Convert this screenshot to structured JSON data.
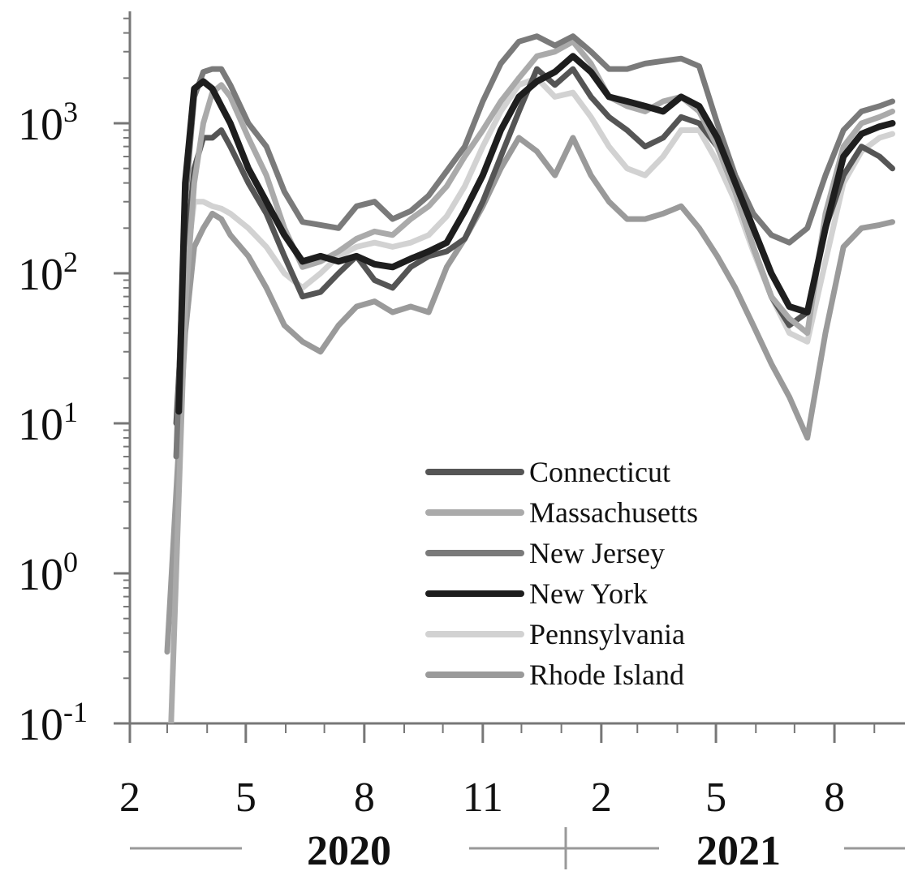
{
  "chart_data": {
    "type": "line",
    "y_scale": "log",
    "ylim": [
      0.1,
      5000
    ],
    "x_range": [
      "2020-02-01",
      "2021-09-15"
    ],
    "y_ticks": [
      {
        "value": 0.1,
        "base": "10",
        "exp": "-1"
      },
      {
        "value": 1,
        "base": "10",
        "exp": "0"
      },
      {
        "value": 10,
        "base": "10",
        "exp": "1"
      },
      {
        "value": 100,
        "base": "10",
        "exp": "2"
      },
      {
        "value": 1000,
        "base": "10",
        "exp": "3"
      }
    ],
    "x_ticks": [
      {
        "date": "2020-02-01",
        "label": "2"
      },
      {
        "date": "2020-05-01",
        "label": "5"
      },
      {
        "date": "2020-08-01",
        "label": "8"
      },
      {
        "date": "2020-11-01",
        "label": "11"
      },
      {
        "date": "2021-02-01",
        "label": "2"
      },
      {
        "date": "2021-05-01",
        "label": "5"
      },
      {
        "date": "2021-08-01",
        "label": "8"
      }
    ],
    "year_labels": [
      {
        "label": "2020"
      },
      {
        "label": "2021"
      }
    ],
    "grid": false,
    "legend_position": "center",
    "series": [
      {
        "name": "Connecticut",
        "color": "#555555",
        "points": [
          [
            "2020-03-08",
            10
          ],
          [
            "2020-03-15",
            120
          ],
          [
            "2020-03-22",
            500
          ],
          [
            "2020-03-29",
            800
          ],
          [
            "2020-04-05",
            800
          ],
          [
            "2020-04-12",
            900
          ],
          [
            "2020-04-19",
            700
          ],
          [
            "2020-05-03",
            400
          ],
          [
            "2020-05-17",
            250
          ],
          [
            "2020-05-31",
            130
          ],
          [
            "2020-06-14",
            70
          ],
          [
            "2020-06-28",
            75
          ],
          [
            "2020-07-12",
            100
          ],
          [
            "2020-07-26",
            130
          ],
          [
            "2020-08-09",
            90
          ],
          [
            "2020-08-23",
            80
          ],
          [
            "2020-09-06",
            110
          ],
          [
            "2020-09-20",
            130
          ],
          [
            "2020-10-04",
            140
          ],
          [
            "2020-10-18",
            170
          ],
          [
            "2020-11-01",
            300
          ],
          [
            "2020-11-15",
            600
          ],
          [
            "2020-11-29",
            1200
          ],
          [
            "2020-12-13",
            2300
          ],
          [
            "2020-12-27",
            1800
          ],
          [
            "2021-01-10",
            2300
          ],
          [
            "2021-01-24",
            1500
          ],
          [
            "2021-02-07",
            1100
          ],
          [
            "2021-02-21",
            900
          ],
          [
            "2021-03-07",
            700
          ],
          [
            "2021-03-21",
            800
          ],
          [
            "2021-04-04",
            1100
          ],
          [
            "2021-04-18",
            1000
          ],
          [
            "2021-05-02",
            700
          ],
          [
            "2021-05-16",
            350
          ],
          [
            "2021-05-30",
            150
          ],
          [
            "2021-06-13",
            70
          ],
          [
            "2021-06-27",
            45
          ],
          [
            "2021-07-11",
            55
          ],
          [
            "2021-07-25",
            200
          ],
          [
            "2021-08-08",
            450
          ],
          [
            "2021-08-22",
            700
          ],
          [
            "2021-09-05",
            600
          ],
          [
            "2021-09-15",
            500
          ]
        ]
      },
      {
        "name": "Massachusetts",
        "color": "#aaaaaa",
        "points": [
          [
            "2020-03-04",
            0.1
          ],
          [
            "2020-03-15",
            60
          ],
          [
            "2020-03-22",
            400
          ],
          [
            "2020-03-29",
            1000
          ],
          [
            "2020-04-05",
            1600
          ],
          [
            "2020-04-12",
            1800
          ],
          [
            "2020-04-19",
            1500
          ],
          [
            "2020-05-03",
            800
          ],
          [
            "2020-05-17",
            450
          ],
          [
            "2020-05-31",
            200
          ],
          [
            "2020-06-14",
            110
          ],
          [
            "2020-06-28",
            120
          ],
          [
            "2020-07-12",
            140
          ],
          [
            "2020-07-26",
            170
          ],
          [
            "2020-08-09",
            190
          ],
          [
            "2020-08-23",
            180
          ],
          [
            "2020-09-06",
            230
          ],
          [
            "2020-09-20",
            280
          ],
          [
            "2020-10-04",
            380
          ],
          [
            "2020-10-18",
            600
          ],
          [
            "2020-11-01",
            900
          ],
          [
            "2020-11-15",
            1400
          ],
          [
            "2020-11-29",
            2000
          ],
          [
            "2020-12-13",
            2800
          ],
          [
            "2020-12-27",
            3000
          ],
          [
            "2021-01-10",
            3500
          ],
          [
            "2021-01-24",
            2500
          ],
          [
            "2021-02-07",
            1500
          ],
          [
            "2021-02-21",
            1300
          ],
          [
            "2021-03-07",
            1200
          ],
          [
            "2021-03-21",
            1400
          ],
          [
            "2021-04-04",
            1500
          ],
          [
            "2021-04-18",
            1200
          ],
          [
            "2021-05-02",
            700
          ],
          [
            "2021-05-16",
            350
          ],
          [
            "2021-05-30",
            150
          ],
          [
            "2021-06-13",
            70
          ],
          [
            "2021-06-27",
            50
          ],
          [
            "2021-07-11",
            40
          ],
          [
            "2021-07-25",
            250
          ],
          [
            "2021-08-08",
            700
          ],
          [
            "2021-08-22",
            1000
          ],
          [
            "2021-09-05",
            1100
          ],
          [
            "2021-09-15",
            1200
          ]
        ]
      },
      {
        "name": "New Jersey",
        "color": "#7a7a7a",
        "points": [
          [
            "2020-03-08",
            6
          ],
          [
            "2020-03-15",
            300
          ],
          [
            "2020-03-22",
            1500
          ],
          [
            "2020-03-29",
            2200
          ],
          [
            "2020-04-05",
            2300
          ],
          [
            "2020-04-12",
            2300
          ],
          [
            "2020-04-19",
            1800
          ],
          [
            "2020-05-03",
            1000
          ],
          [
            "2020-05-17",
            700
          ],
          [
            "2020-05-31",
            350
          ],
          [
            "2020-06-14",
            220
          ],
          [
            "2020-06-28",
            210
          ],
          [
            "2020-07-12",
            200
          ],
          [
            "2020-07-26",
            280
          ],
          [
            "2020-08-09",
            300
          ],
          [
            "2020-08-23",
            230
          ],
          [
            "2020-09-06",
            260
          ],
          [
            "2020-09-20",
            330
          ],
          [
            "2020-10-04",
            480
          ],
          [
            "2020-10-18",
            700
          ],
          [
            "2020-11-01",
            1400
          ],
          [
            "2020-11-15",
            2500
          ],
          [
            "2020-11-29",
            3500
          ],
          [
            "2020-12-13",
            3800
          ],
          [
            "2020-12-27",
            3300
          ],
          [
            "2021-01-10",
            3800
          ],
          [
            "2021-01-24",
            3000
          ],
          [
            "2021-02-07",
            2300
          ],
          [
            "2021-02-21",
            2300
          ],
          [
            "2021-03-07",
            2500
          ],
          [
            "2021-03-21",
            2600
          ],
          [
            "2021-04-04",
            2700
          ],
          [
            "2021-04-18",
            2400
          ],
          [
            "2021-05-02",
            1000
          ],
          [
            "2021-05-16",
            450
          ],
          [
            "2021-05-30",
            250
          ],
          [
            "2021-06-13",
            180
          ],
          [
            "2021-06-27",
            160
          ],
          [
            "2021-07-11",
            200
          ],
          [
            "2021-07-25",
            450
          ],
          [
            "2021-08-08",
            900
          ],
          [
            "2021-08-22",
            1200
          ],
          [
            "2021-09-05",
            1300
          ],
          [
            "2021-09-15",
            1400
          ]
        ]
      },
      {
        "name": "New York",
        "color": "#1e1e1e",
        "points": [
          [
            "2020-03-10",
            12
          ],
          [
            "2020-03-15",
            400
          ],
          [
            "2020-03-22",
            1700
          ],
          [
            "2020-03-29",
            1900
          ],
          [
            "2020-04-05",
            1700
          ],
          [
            "2020-04-12",
            1300
          ],
          [
            "2020-04-19",
            1000
          ],
          [
            "2020-05-03",
            500
          ],
          [
            "2020-05-17",
            300
          ],
          [
            "2020-05-31",
            180
          ],
          [
            "2020-06-14",
            120
          ],
          [
            "2020-06-28",
            130
          ],
          [
            "2020-07-12",
            120
          ],
          [
            "2020-07-26",
            130
          ],
          [
            "2020-08-09",
            115
          ],
          [
            "2020-08-23",
            110
          ],
          [
            "2020-09-06",
            125
          ],
          [
            "2020-09-20",
            140
          ],
          [
            "2020-10-04",
            160
          ],
          [
            "2020-10-18",
            260
          ],
          [
            "2020-11-01",
            450
          ],
          [
            "2020-11-15",
            900
          ],
          [
            "2020-11-29",
            1500
          ],
          [
            "2020-12-13",
            1900
          ],
          [
            "2020-12-27",
            2200
          ],
          [
            "2021-01-10",
            2800
          ],
          [
            "2021-01-24",
            2200
          ],
          [
            "2021-02-07",
            1500
          ],
          [
            "2021-02-21",
            1400
          ],
          [
            "2021-03-07",
            1300
          ],
          [
            "2021-03-21",
            1200
          ],
          [
            "2021-04-04",
            1500
          ],
          [
            "2021-04-18",
            1300
          ],
          [
            "2021-05-02",
            800
          ],
          [
            "2021-05-16",
            400
          ],
          [
            "2021-05-30",
            200
          ],
          [
            "2021-06-13",
            100
          ],
          [
            "2021-06-27",
            60
          ],
          [
            "2021-07-11",
            55
          ],
          [
            "2021-07-25",
            200
          ],
          [
            "2021-08-08",
            600
          ],
          [
            "2021-08-22",
            850
          ],
          [
            "2021-09-05",
            950
          ],
          [
            "2021-09-15",
            1000
          ]
        ]
      },
      {
        "name": "Pennsylvania",
        "color": "#d2d2d2",
        "points": [
          [
            "2020-03-08",
            6
          ],
          [
            "2020-03-15",
            100
          ],
          [
            "2020-03-22",
            300
          ],
          [
            "2020-03-29",
            300
          ],
          [
            "2020-04-05",
            280
          ],
          [
            "2020-04-12",
            270
          ],
          [
            "2020-04-19",
            250
          ],
          [
            "2020-05-03",
            200
          ],
          [
            "2020-05-17",
            150
          ],
          [
            "2020-05-31",
            100
          ],
          [
            "2020-06-14",
            80
          ],
          [
            "2020-06-28",
            100
          ],
          [
            "2020-07-12",
            130
          ],
          [
            "2020-07-26",
            150
          ],
          [
            "2020-08-09",
            160
          ],
          [
            "2020-08-23",
            150
          ],
          [
            "2020-09-06",
            160
          ],
          [
            "2020-09-20",
            180
          ],
          [
            "2020-10-04",
            240
          ],
          [
            "2020-10-18",
            380
          ],
          [
            "2020-11-01",
            700
          ],
          [
            "2020-11-15",
            1200
          ],
          [
            "2020-11-29",
            1800
          ],
          [
            "2020-12-13",
            2000
          ],
          [
            "2020-12-27",
            1500
          ],
          [
            "2021-01-10",
            1600
          ],
          [
            "2021-01-24",
            1100
          ],
          [
            "2021-02-07",
            700
          ],
          [
            "2021-02-21",
            500
          ],
          [
            "2021-03-07",
            450
          ],
          [
            "2021-03-21",
            600
          ],
          [
            "2021-04-04",
            900
          ],
          [
            "2021-04-18",
            900
          ],
          [
            "2021-05-02",
            550
          ],
          [
            "2021-05-16",
            300
          ],
          [
            "2021-05-30",
            140
          ],
          [
            "2021-06-13",
            70
          ],
          [
            "2021-06-27",
            40
          ],
          [
            "2021-07-11",
            35
          ],
          [
            "2021-07-25",
            120
          ],
          [
            "2021-08-08",
            400
          ],
          [
            "2021-08-22",
            650
          ],
          [
            "2021-09-05",
            800
          ],
          [
            "2021-09-15",
            850
          ]
        ]
      },
      {
        "name": "Rhode Island",
        "color": "#9a9a9a",
        "points": [
          [
            "2020-03-01",
            0.3
          ],
          [
            "2020-03-15",
            40
          ],
          [
            "2020-03-22",
            150
          ],
          [
            "2020-03-29",
            200
          ],
          [
            "2020-04-05",
            250
          ],
          [
            "2020-04-12",
            230
          ],
          [
            "2020-04-19",
            180
          ],
          [
            "2020-05-03",
            130
          ],
          [
            "2020-05-17",
            80
          ],
          [
            "2020-05-31",
            45
          ],
          [
            "2020-06-14",
            35
          ],
          [
            "2020-06-28",
            30
          ],
          [
            "2020-07-12",
            45
          ],
          [
            "2020-07-26",
            60
          ],
          [
            "2020-08-09",
            65
          ],
          [
            "2020-08-23",
            55
          ],
          [
            "2020-09-06",
            60
          ],
          [
            "2020-09-20",
            55
          ],
          [
            "2020-10-04",
            110
          ],
          [
            "2020-10-18",
            170
          ],
          [
            "2020-11-01",
            280
          ],
          [
            "2020-11-15",
            500
          ],
          [
            "2020-11-29",
            800
          ],
          [
            "2020-12-13",
            650
          ],
          [
            "2020-12-27",
            450
          ],
          [
            "2021-01-10",
            800
          ],
          [
            "2021-01-24",
            450
          ],
          [
            "2021-02-07",
            300
          ],
          [
            "2021-02-21",
            230
          ],
          [
            "2021-03-07",
            230
          ],
          [
            "2021-03-21",
            250
          ],
          [
            "2021-04-04",
            280
          ],
          [
            "2021-04-18",
            200
          ],
          [
            "2021-05-02",
            130
          ],
          [
            "2021-05-16",
            80
          ],
          [
            "2021-05-30",
            45
          ],
          [
            "2021-06-13",
            25
          ],
          [
            "2021-06-27",
            15
          ],
          [
            "2021-07-11",
            8
          ],
          [
            "2021-07-25",
            40
          ],
          [
            "2021-08-08",
            150
          ],
          [
            "2021-08-22",
            200
          ],
          [
            "2021-09-05",
            210
          ],
          [
            "2021-09-15",
            220
          ]
        ]
      }
    ]
  }
}
